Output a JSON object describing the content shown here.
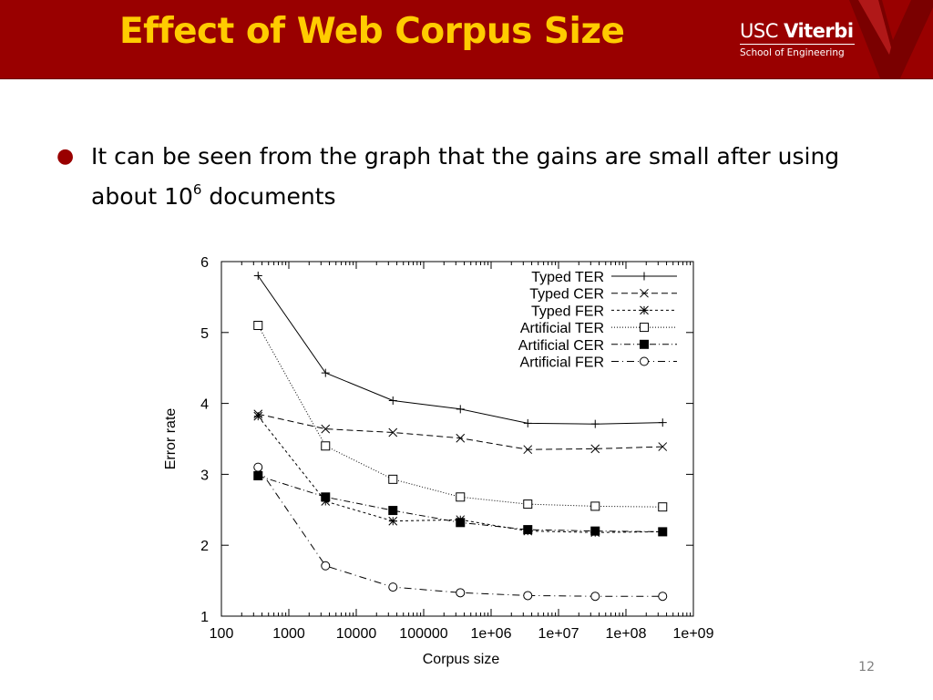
{
  "slide": {
    "title": "Effect of Web Corpus Size",
    "logo": {
      "usc": "USC",
      "viterbi": "Viterbi",
      "school": "School of Engineering"
    },
    "bullet": {
      "before": "It can be seen from the graph that the gains are small after using about 10",
      "superscript": "6",
      "after": " documents"
    },
    "page_number": "12"
  },
  "colors": {
    "header_bg": "#990000",
    "title": "#FFCC00",
    "bullet": "#990000"
  },
  "chart_data": {
    "type": "line",
    "xlabel": "Corpus size",
    "ylabel": "Error rate",
    "x_scale": "log",
    "xlim": [
      100,
      1000000000
    ],
    "ylim": [
      1,
      6
    ],
    "x_ticks": [
      100,
      1000,
      10000,
      100000,
      1000000,
      10000000,
      100000000,
      1000000000
    ],
    "x_tick_labels": [
      "100",
      "1000",
      "10000",
      "100000",
      "1e+06",
      "1e+07",
      "1e+08",
      "1e+09"
    ],
    "y_ticks": [
      1,
      2,
      3,
      4,
      5,
      6
    ],
    "y_tick_labels": [
      "1",
      "2",
      "3",
      "4",
      "5",
      "6"
    ],
    "legend_position": "top-right",
    "grid": false,
    "x": [
      350,
      3500,
      35000,
      350000,
      3500000,
      35000000,
      350000000
    ],
    "series": [
      {
        "name": "Typed TER",
        "marker": "plus",
        "dash": "solid",
        "values": [
          5.8,
          4.43,
          4.04,
          3.92,
          3.72,
          3.71,
          3.73
        ]
      },
      {
        "name": "Typed CER",
        "marker": "cross",
        "dash": "dashed",
        "values": [
          3.85,
          3.64,
          3.59,
          3.51,
          3.35,
          3.36,
          3.39
        ]
      },
      {
        "name": "Typed FER",
        "marker": "star",
        "dash": "short-dashed",
        "values": [
          3.82,
          2.62,
          2.34,
          2.36,
          2.2,
          2.18,
          2.19
        ]
      },
      {
        "name": "Artificial TER",
        "marker": "square-open",
        "dash": "dotted",
        "values": [
          5.1,
          3.4,
          2.93,
          2.68,
          2.58,
          2.55,
          2.54
        ]
      },
      {
        "name": "Artificial CER",
        "marker": "square-filled",
        "dash": "dash-dot",
        "values": [
          2.98,
          2.68,
          2.49,
          2.32,
          2.22,
          2.2,
          2.19
        ]
      },
      {
        "name": "Artificial FER",
        "marker": "circle-open",
        "dash": "dash-dot-sparse",
        "values": [
          3.1,
          1.71,
          1.41,
          1.33,
          1.29,
          1.28,
          1.28
        ]
      }
    ]
  }
}
